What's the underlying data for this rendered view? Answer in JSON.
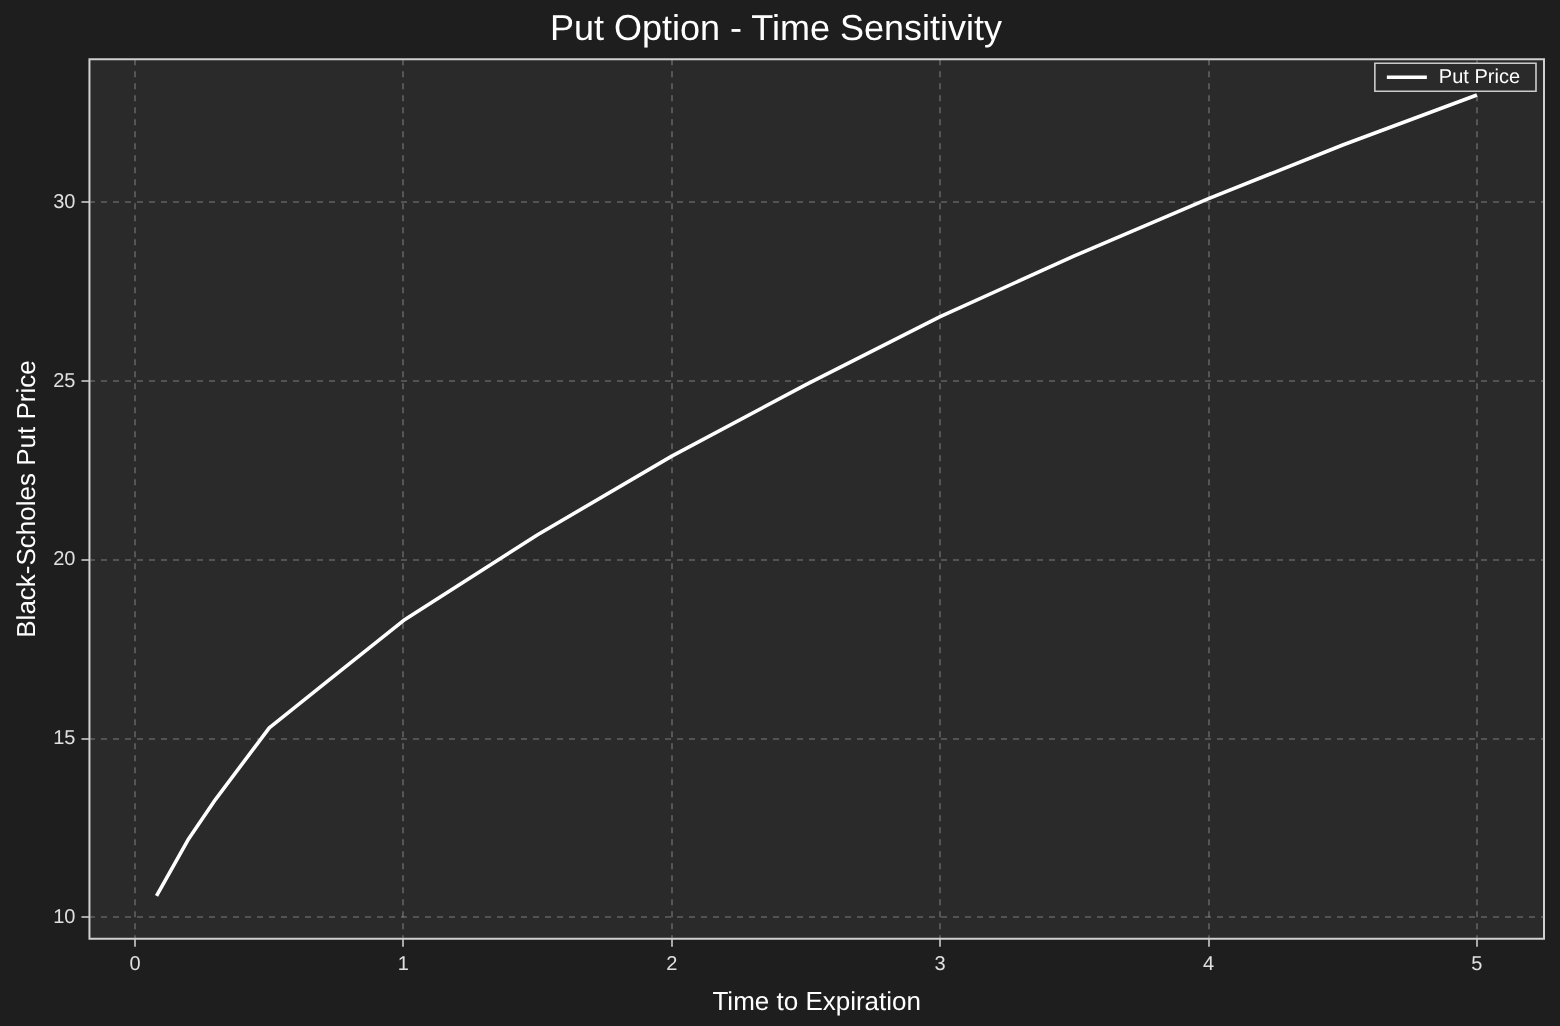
{
  "chart_data": {
    "type": "line",
    "title": "Put Option - Time Sensitivity",
    "xlabel": "Time to Expiration",
    "ylabel": "Black-Scholes Put Price",
    "x": [
      0.08,
      0.2,
      0.3,
      0.5,
      0.75,
      1,
      1.5,
      2,
      2.5,
      3,
      3.5,
      4,
      4.5,
      5
    ],
    "series": [
      {
        "name": "Put Price",
        "color": "#ffffff",
        "values": [
          10.6,
          12.2,
          13.3,
          15.3,
          16.8,
          18.3,
          20.7,
          22.9,
          24.9,
          26.8,
          28.5,
          30.1,
          31.6,
          33.0
        ]
      }
    ],
    "xlim": [
      -0.17,
      5.25
    ],
    "ylim": [
      9.4,
      34
    ],
    "xticks": [
      0,
      1,
      2,
      3,
      4,
      5
    ],
    "yticks": [
      10,
      15,
      20,
      25,
      30
    ],
    "grid": true,
    "legend": "top right",
    "marker": "none",
    "line_style": "solid"
  }
}
